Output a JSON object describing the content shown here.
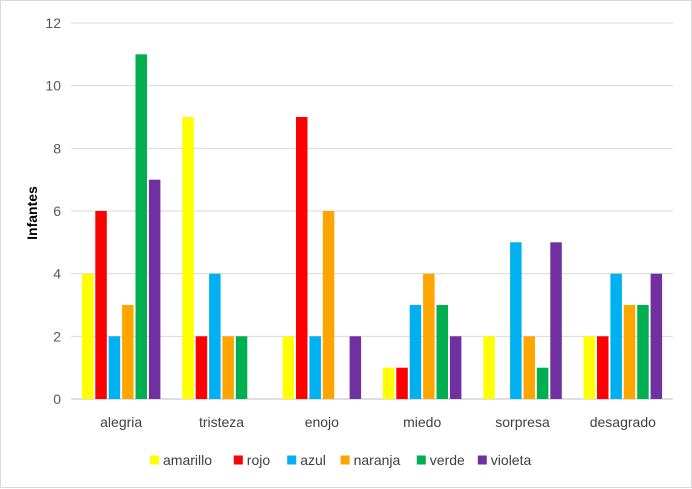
{
  "chart_data": {
    "type": "bar",
    "title": "",
    "xlabel": "",
    "ylabel": "Infantes",
    "ylim": [
      0,
      12
    ],
    "yticks": [
      0,
      2,
      4,
      6,
      8,
      10,
      12
    ],
    "grid": true,
    "legend_position": "bottom",
    "categories": [
      "alegria",
      "tristeza",
      "enojo",
      "miedo",
      "sorpresa",
      "desagrado"
    ],
    "series": [
      {
        "name": "amarillo",
        "color": "#ffff00",
        "values": [
          4,
          9,
          2,
          1,
          2,
          2
        ]
      },
      {
        "name": "rojo",
        "color": "#ff0000",
        "values": [
          6,
          2,
          9,
          1,
          0,
          2
        ]
      },
      {
        "name": "azul",
        "color": "#00b0f0",
        "values": [
          2,
          4,
          2,
          3,
          5,
          4
        ]
      },
      {
        "name": "naranja",
        "color": "#ffa500",
        "values": [
          3,
          2,
          6,
          4,
          2,
          3
        ]
      },
      {
        "name": "verde",
        "color": "#00b050",
        "values": [
          11,
          2,
          0,
          3,
          1,
          3
        ]
      },
      {
        "name": "violeta",
        "color": "#7030a0",
        "values": [
          7,
          0,
          2,
          2,
          5,
          4
        ]
      }
    ]
  }
}
